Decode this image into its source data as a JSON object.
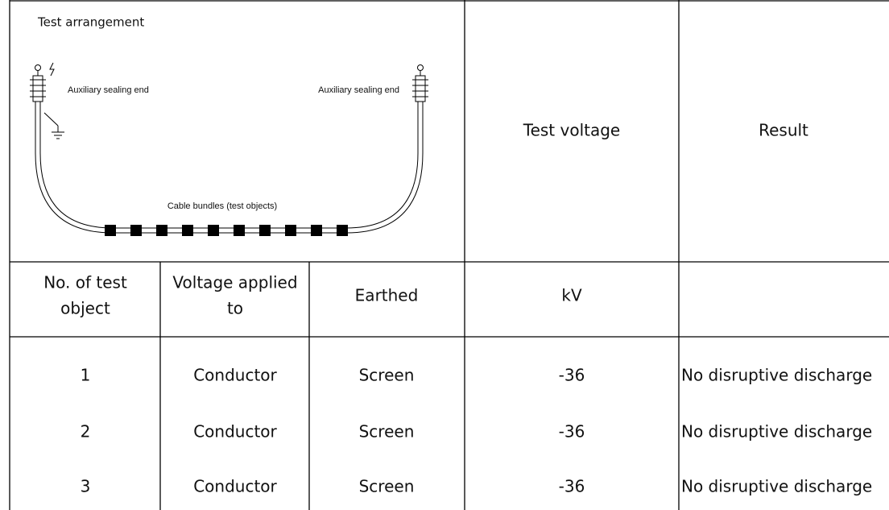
{
  "header": {
    "title": "Test arrangement",
    "diagram": {
      "left_label": "Auxiliary sealing end",
      "right_label": "Auxiliary sealing end",
      "cable_label": "Cable bundles (test objects)"
    }
  },
  "table": {
    "top_headers": [
      "Test voltage",
      "Result"
    ],
    "headers": [
      [
        "No. of test",
        "object"
      ],
      [
        "Voltage applied",
        "to"
      ],
      [
        "Earthed"
      ],
      [
        "kV"
      ]
    ],
    "rows": [
      [
        "1",
        "Conductor",
        "Screen",
        "-36",
        "No disruptive discharge"
      ],
      [
        "2",
        "Conductor",
        "Screen",
        "-36",
        "No disruptive discharge"
      ],
      [
        "3",
        "Conductor",
        "Screen",
        "-36",
        "No disruptive discharge"
      ]
    ]
  }
}
